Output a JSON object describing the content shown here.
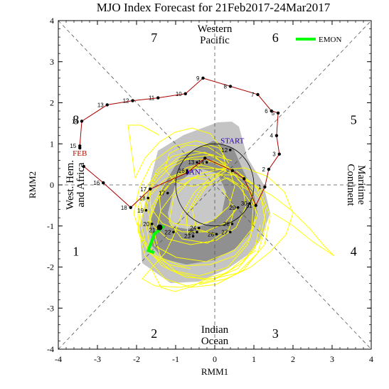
{
  "chart_data": {
    "type": "line",
    "title": "MJO Index Forecast for 21Feb2017-24Mar2017",
    "xlabel": "RMM1",
    "ylabel": "RMM2",
    "xlim": [
      -4,
      4
    ],
    "ylim": [
      -4,
      4
    ],
    "x_ticks": [
      "-4",
      "-3",
      "-2",
      "-1",
      "0",
      "1",
      "2",
      "3",
      "4"
    ],
    "y_ticks": [
      "-4",
      "-3",
      "-2",
      "-1",
      "0",
      "1",
      "2",
      "3",
      "4"
    ],
    "phase_labels": [
      {
        "text": "1",
        "x": -3.55,
        "y": -1.6
      },
      {
        "text": "2",
        "x": -1.55,
        "y": -3.6
      },
      {
        "text": "3",
        "x": 1.55,
        "y": -3.6
      },
      {
        "text": "4",
        "x": 3.55,
        "y": -1.6
      },
      {
        "text": "5",
        "x": 3.55,
        "y": 1.6
      },
      {
        "text": "6",
        "x": 1.55,
        "y": 3.6
      },
      {
        "text": "7",
        "x": -1.55,
        "y": 3.6
      },
      {
        "text": "8",
        "x": -3.55,
        "y": 1.6
      }
    ],
    "region_labels": {
      "top": [
        "Western",
        "Pacific"
      ],
      "bottom": [
        "Indian",
        "Ocean"
      ],
      "left": [
        "West. Hem.",
        "and Africa"
      ],
      "right": [
        "Maritime",
        "Continent"
      ]
    },
    "legend": {
      "label": "EMON",
      "color": "#00ff00",
      "position": "top-right"
    },
    "annotations": [
      {
        "text": "START",
        "x": 0.45,
        "y": 1.08,
        "color": "#3300bb"
      },
      {
        "text": "FEB",
        "x": -3.45,
        "y": 0.78,
        "color": "#aa1100"
      },
      {
        "text": "JAN",
        "x": -0.55,
        "y": 0.32,
        "color": "#3300bb"
      }
    ],
    "observed_series": {
      "name": "Observed",
      "color": "#aa0000",
      "points": [
        {
          "label": "",
          "x": -3.45,
          "y": 0.9
        },
        {
          "label": "15",
          "x": -3.45,
          "y": 0.95
        },
        {
          "label": "14",
          "x": -3.4,
          "y": 1.55
        },
        {
          "label": "13",
          "x": -2.75,
          "y": 1.95
        },
        {
          "label": "12",
          "x": -2.1,
          "y": 2.05
        },
        {
          "label": "11",
          "x": -1.45,
          "y": 2.12
        },
        {
          "label": "10",
          "x": -0.75,
          "y": 2.22
        },
        {
          "label": "9",
          "x": -0.3,
          "y": 2.6
        },
        {
          "label": "8",
          "x": 0.4,
          "y": 2.4
        },
        {
          "label": "7",
          "x": 1.1,
          "y": 2.2
        },
        {
          "label": "6",
          "x": 1.45,
          "y": 1.8
        },
        {
          "label": "5",
          "x": 1.62,
          "y": 1.75
        },
        {
          "label": "4",
          "x": 1.58,
          "y": 1.2
        },
        {
          "label": "3",
          "x": 1.65,
          "y": 0.75
        },
        {
          "label": "2",
          "x": 1.38,
          "y": 0.38
        },
        {
          "label": "1",
          "x": 1.28,
          "y": -0.05
        },
        {
          "label": "31",
          "x": 1.05,
          "y": -0.5
        },
        {
          "label": "",
          "x": 0.75,
          "y": 0.15
        },
        {
          "label": "",
          "x": 0.45,
          "y": 0.35
        },
        {
          "label": "",
          "x": -0.25,
          "y": 0.65
        },
        {
          "label": "",
          "x": -0.7,
          "y": 0.3
        },
        {
          "label": "17",
          "x": -1.65,
          "y": -0.1
        },
        {
          "label": "18",
          "x": -2.15,
          "y": -0.55
        },
        {
          "label": "16",
          "x": -2.85,
          "y": 0.05
        },
        {
          "label": "",
          "x": -3.35,
          "y": 0.45
        }
      ]
    },
    "forecast_endpoint_labels": [
      {
        "text": "17",
        "x": -1.35,
        "y": -0.2
      },
      {
        "text": "18",
        "x": -1.85,
        "y": -0.32
      },
      {
        "text": "19",
        "x": -1.9,
        "y": -0.62
      },
      {
        "text": "20",
        "x": -1.75,
        "y": -0.95
      },
      {
        "text": "21",
        "x": -1.6,
        "y": -1.1
      },
      {
        "text": "22",
        "x": -1.2,
        "y": -1.15
      },
      {
        "text": "23",
        "x": -0.7,
        "y": -1.25
      },
      {
        "text": "24",
        "x": -0.55,
        "y": -1.05
      },
      {
        "text": "25",
        "x": -0.6,
        "y": -1.15
      },
      {
        "text": "26",
        "x": -0.1,
        "y": -1.2
      },
      {
        "text": "27",
        "x": 0.25,
        "y": -1.15
      },
      {
        "text": "28",
        "x": 0.3,
        "y": -0.95
      },
      {
        "text": "29",
        "x": 0.45,
        "y": -0.55
      },
      {
        "text": "30",
        "x": 0.75,
        "y": -0.45
      },
      {
        "text": "13",
        "x": -0.6,
        "y": 0.55
      },
      {
        "text": "14",
        "x": -0.35,
        "y": 0.55
      },
      {
        "text": "12",
        "x": 0.25,
        "y": 0.85
      },
      {
        "text": "16",
        "x": -0.85,
        "y": 0.35
      }
    ],
    "ensemble_mean_series": {
      "name": "EMON",
      "color": "#00ff00",
      "points": [
        {
          "x": -1.3,
          "y": -1.0
        },
        {
          "x": -1.55,
          "y": -1.2
        },
        {
          "x": -1.7,
          "y": -1.6
        },
        {
          "x": -1.55,
          "y": -1.65
        }
      ]
    }
  }
}
